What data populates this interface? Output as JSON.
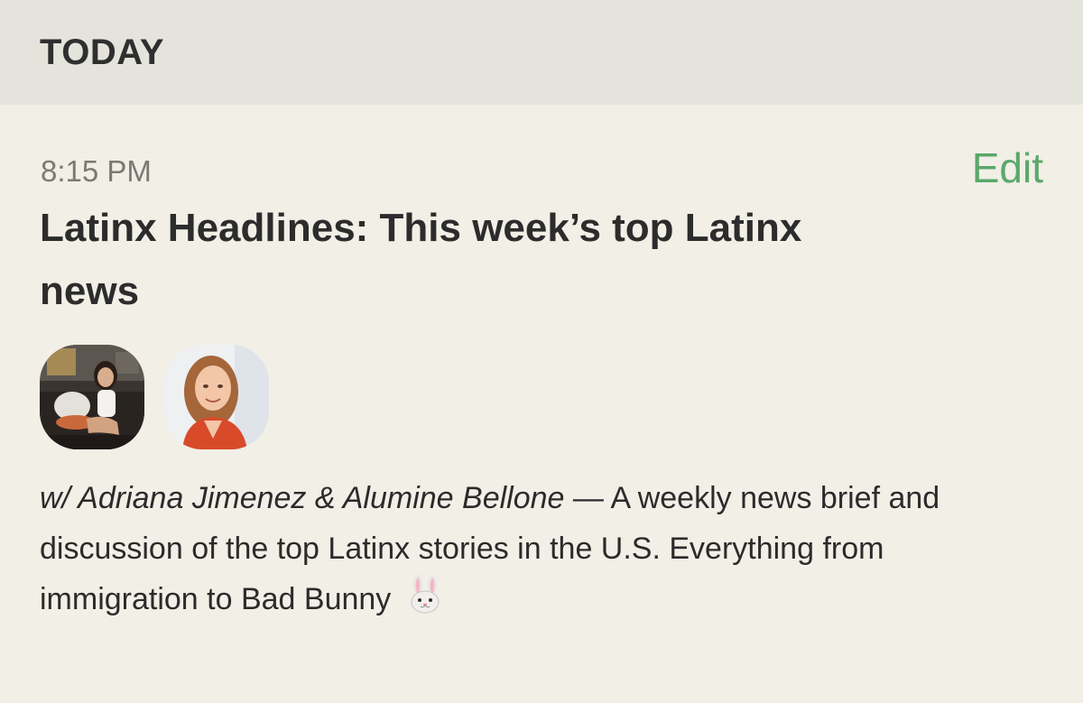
{
  "section": {
    "title": "TODAY"
  },
  "event": {
    "time": "8:15 PM",
    "edit_label": "Edit",
    "title": "Latinx Headlines: This week’s top Latinx news",
    "hosts": "w/ Adriana Jimenez & Alumine Bellone",
    "description": " — A weekly news brief and discussion of the top Latinx stories in the U.S. Everything from immigration to Bad Bunny",
    "emoji_icon": "rabbit-face-icon",
    "avatars": [
      {
        "icon": "avatar-photo"
      },
      {
        "icon": "avatar-photo"
      }
    ]
  },
  "colors": {
    "background": "#f1efe6",
    "header_background": "#e5e4dc",
    "accent_green": "#5aa86b",
    "muted_text": "#7a7a75"
  }
}
